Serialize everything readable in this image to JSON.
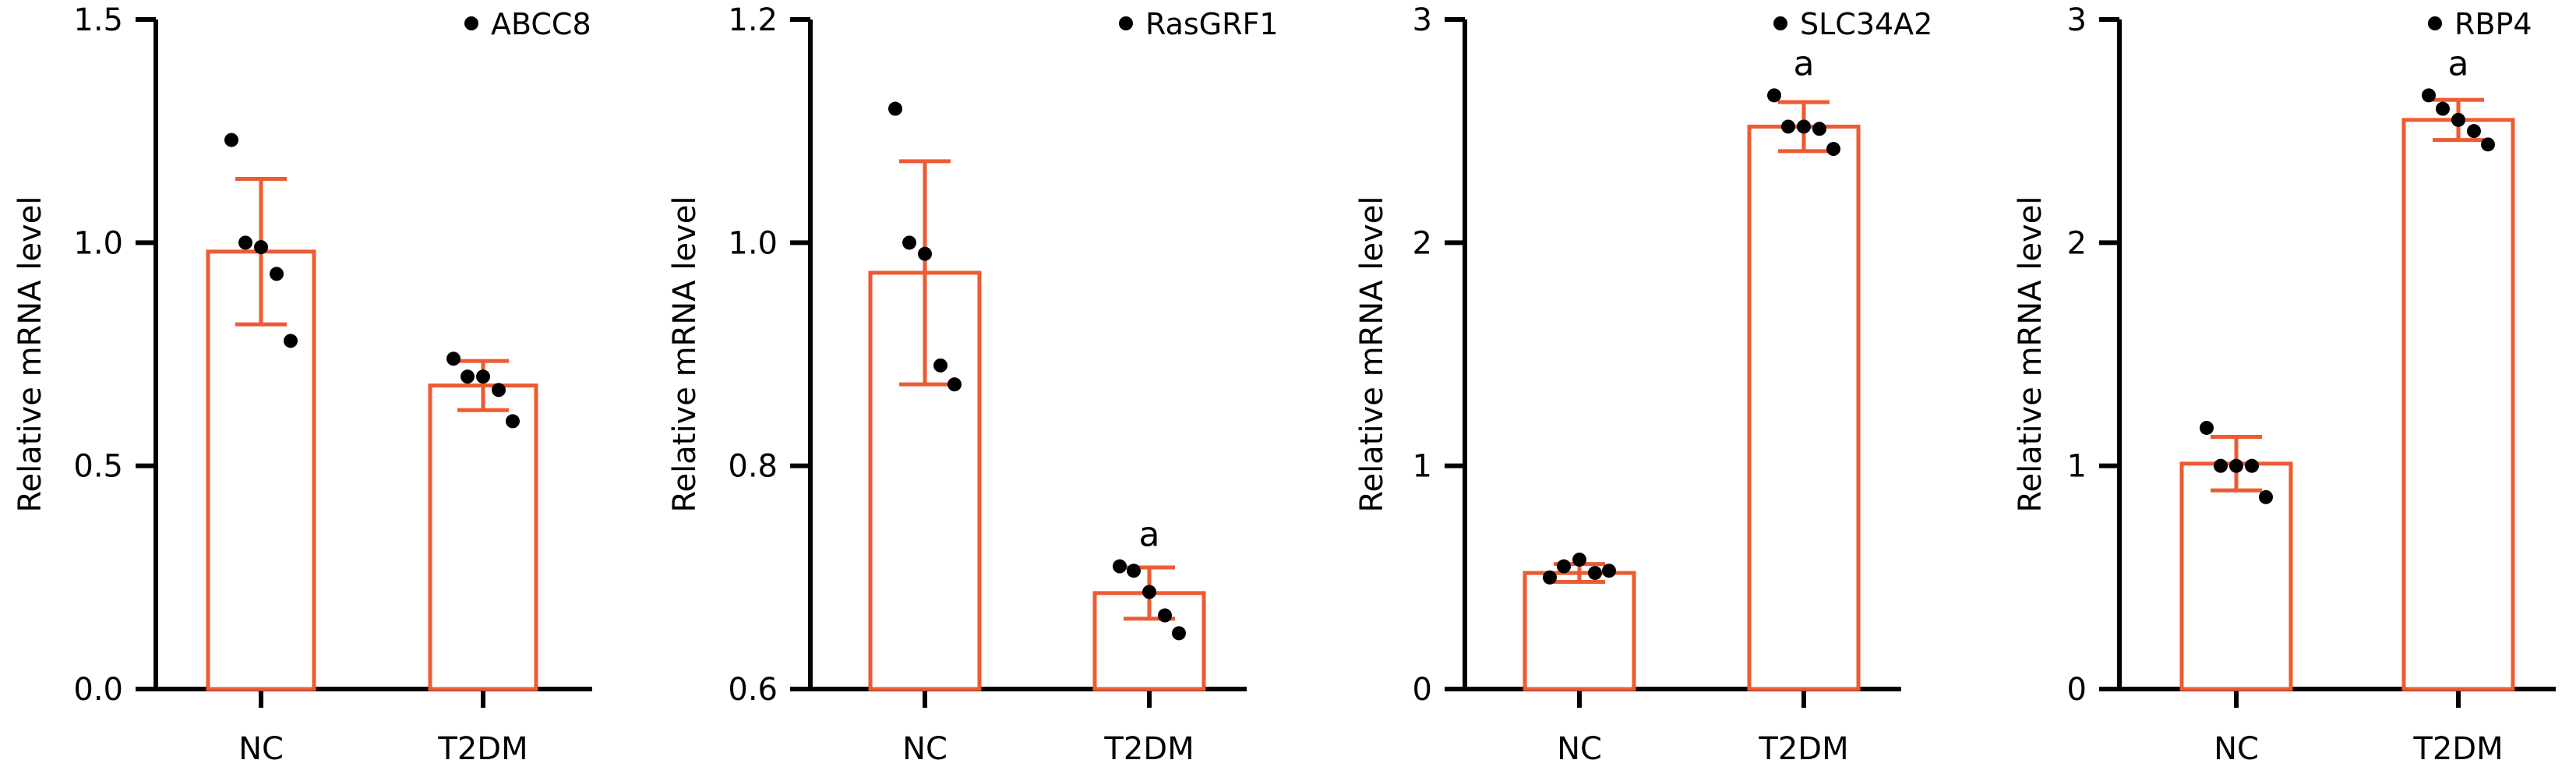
{
  "chart_data": [
    {
      "type": "bar",
      "legend": "ABCC8",
      "ylabel": "Relative mRNA level",
      "categories": [
        "NC",
        "T2DM"
      ],
      "ylim": [
        0,
        1.5
      ],
      "yticks": [
        0.0,
        0.5,
        1.0,
        1.5
      ],
      "ytick_labels": [
        "0.0",
        "0.5",
        "1.0",
        "1.5"
      ],
      "values": [
        0.98,
        0.68
      ],
      "error": [
        0.163,
        0.055
      ],
      "points": [
        [
          1.23,
          1.0,
          0.99,
          0.93,
          0.78
        ],
        [
          0.74,
          0.7,
          0.7,
          0.67,
          0.6
        ]
      ],
      "significance": [
        "",
        ""
      ],
      "color": "#ee5a32"
    },
    {
      "type": "bar",
      "legend": "RasGRF1",
      "ylabel": "Relative mRNA level",
      "categories": [
        "NC",
        "T2DM"
      ],
      "ylim": [
        0.6,
        1.2
      ],
      "yticks": [
        0.6,
        0.8,
        1.0,
        1.2
      ],
      "ytick_labels": [
        "0.6",
        "0.8",
        "1.0",
        "1.2"
      ],
      "values": [
        0.973,
        0.686
      ],
      "error": [
        0.1,
        0.023
      ],
      "points": [
        [
          1.12,
          1.0,
          0.99,
          0.89,
          0.873
        ],
        [
          0.71,
          0.706,
          0.687,
          0.666,
          0.65
        ]
      ],
      "significance": [
        "",
        "a"
      ],
      "color": "#ee5a32"
    },
    {
      "type": "bar",
      "legend": "SLC34A2",
      "ylabel": "Relative mRNA level",
      "categories": [
        "NC",
        "T2DM"
      ],
      "ylim": [
        0,
        3
      ],
      "yticks": [
        0,
        1,
        2,
        3
      ],
      "ytick_labels": [
        "0",
        "1",
        "2",
        "3"
      ],
      "values": [
        0.52,
        2.52
      ],
      "error": [
        0.04,
        0.11
      ],
      "points": [
        [
          0.5,
          0.55,
          0.58,
          0.52,
          0.53
        ],
        [
          2.66,
          2.52,
          2.52,
          2.51,
          2.42
        ]
      ],
      "significance": [
        "",
        "a"
      ],
      "color": "#ee5a32"
    },
    {
      "type": "bar",
      "legend": "RBP4",
      "ylabel": "Relative mRNA level",
      "categories": [
        "NC",
        "T2DM"
      ],
      "ylim": [
        0,
        3
      ],
      "yticks": [
        0,
        1,
        2,
        3
      ],
      "ytick_labels": [
        "0",
        "1",
        "2",
        "3"
      ],
      "values": [
        1.01,
        2.55
      ],
      "error": [
        0.12,
        0.09
      ],
      "points": [
        [
          1.17,
          1.0,
          1.0,
          1.0,
          0.86
        ],
        [
          2.66,
          2.6,
          2.55,
          2.5,
          2.44
        ]
      ],
      "significance": [
        "",
        "a"
      ],
      "color": "#ee5a32"
    }
  ]
}
